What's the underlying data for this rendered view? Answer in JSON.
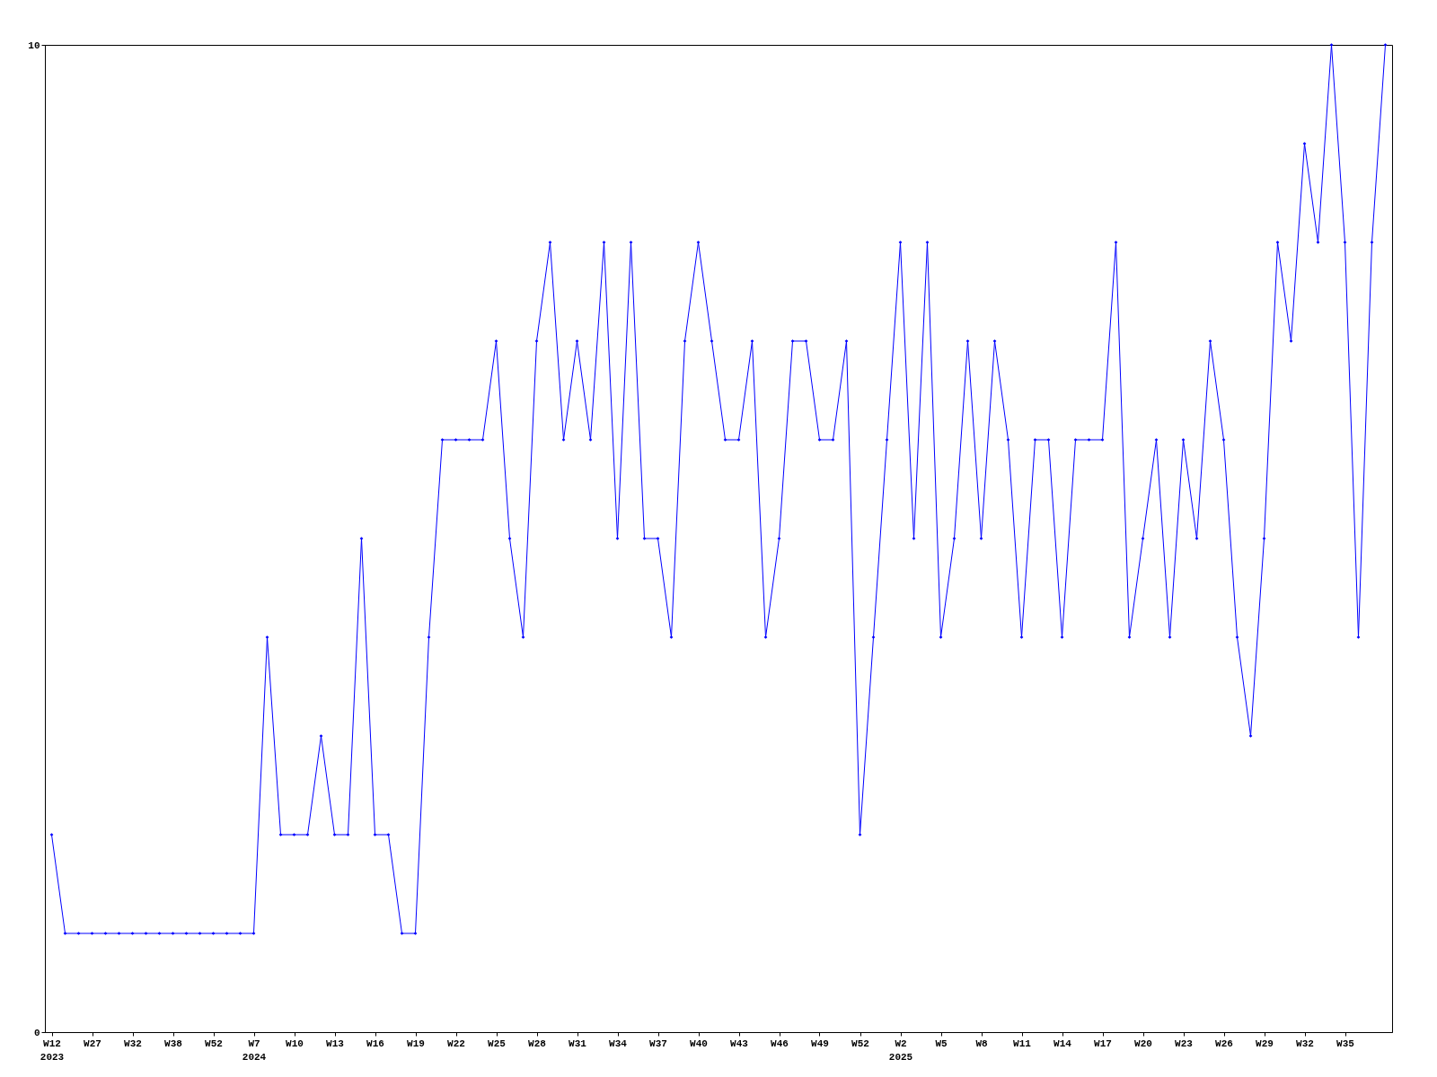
{
  "chart_data": {
    "type": "line",
    "categories": [
      "W12\n2023",
      null,
      null,
      "W27",
      null,
      null,
      "W32",
      null,
      null,
      "W38",
      null,
      null,
      "W52",
      null,
      null,
      "W7\n2024",
      null,
      null,
      "W10",
      null,
      null,
      "W13",
      null,
      null,
      "W16",
      null,
      null,
      "W19",
      null,
      null,
      "W22",
      null,
      null,
      "W25",
      null,
      null,
      "W28",
      null,
      null,
      "W31",
      null,
      null,
      "W34",
      null,
      null,
      "W37",
      null,
      null,
      "W40",
      null,
      null,
      "W43",
      null,
      null,
      "W46",
      null,
      null,
      "W49",
      null,
      null,
      "W52",
      null,
      null,
      "W2\n2025",
      null,
      null,
      "W5",
      null,
      null,
      "W8",
      null,
      null,
      "W11",
      null,
      null,
      "W14",
      null,
      null,
      "W17",
      null,
      null,
      "W20",
      null,
      null,
      "W23",
      null,
      null,
      "W26",
      null,
      null,
      "W29",
      null,
      null,
      "W32",
      null,
      null,
      "W35",
      null,
      null,
      null
    ],
    "series": [
      {
        "color": "#0000ff",
        "values": [
          2,
          1,
          1,
          1,
          1,
          1,
          1,
          1,
          1,
          1,
          1,
          1,
          1,
          1,
          1,
          1,
          4,
          2,
          2,
          2,
          3,
          2,
          2,
          5,
          2,
          2,
          1,
          1,
          4,
          6,
          6,
          6,
          6,
          7,
          5,
          4,
          7,
          8,
          6,
          7,
          6,
          8,
          5,
          8,
          5,
          5,
          4,
          7,
          8,
          7,
          6,
          6,
          7,
          4,
          5,
          7,
          7,
          6,
          6,
          7,
          2,
          4,
          6,
          8,
          5,
          8,
          4,
          5,
          7,
          5,
          7,
          6,
          4,
          6,
          6,
          4,
          6,
          6,
          6,
          8,
          4,
          5,
          6,
          4,
          6,
          5,
          7,
          6,
          4,
          3,
          5,
          8,
          7,
          9,
          8,
          10,
          8,
          4,
          8,
          10
        ]
      }
    ],
    "ylim": [
      0,
      10
    ],
    "yticks": [
      0,
      10
    ],
    "grid": false,
    "marker": "diamond",
    "line_style": "solid"
  }
}
